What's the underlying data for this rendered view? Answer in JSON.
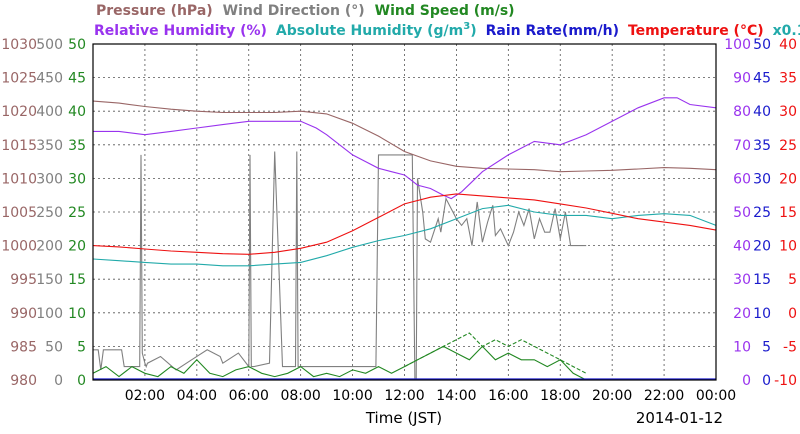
{
  "chart_data": {
    "type": "line",
    "date_label": "2014-01-12",
    "xlabel": "Time (JST)",
    "x_range_hours": [
      0,
      24
    ],
    "x_tick_hours": [
      2,
      4,
      6,
      8,
      10,
      12,
      14,
      16,
      18,
      20,
      22,
      24
    ],
    "x_tick_labels": [
      "02:00",
      "04:00",
      "06:00",
      "08:00",
      "10:00",
      "12:00",
      "14:00",
      "16:00",
      "18:00",
      "20:00",
      "22:00",
      "00:00"
    ],
    "grid": true,
    "legend": {
      "row1": [
        {
          "text": "Pressure (hPa)",
          "color": "#996666"
        },
        {
          "text": "Wind Direction (°)",
          "color": "#808080"
        },
        {
          "text": "Wind Speed (m/s)",
          "color": "#228822"
        }
      ],
      "row2": [
        {
          "text": "Relative Humidity (%)",
          "color": "#9933ee"
        },
        {
          "text": "Absolute Humidity (g/m",
          "sup": "3",
          "close": ")",
          "color": "#22aaaa"
        },
        {
          "text": "Rain Rate(mm/h)",
          "color": "#1a1acc"
        },
        {
          "text": "Temperature (°C)",
          "color": "#ee1111"
        },
        {
          "text": "x0.1",
          "color": "#22aaaa"
        }
      ]
    },
    "axes": {
      "pressure": {
        "labels": [
          "1030",
          "1025",
          "1020",
          "1015",
          "1010",
          "1005",
          "1000",
          "995",
          "990",
          "985",
          "980"
        ],
        "range": [
          980,
          1030
        ],
        "color": "#996666"
      },
      "wind_direction": {
        "labels": [
          "500",
          "450",
          "400",
          "350",
          "300",
          "250",
          "200",
          "150",
          "100",
          "50",
          "0"
        ],
        "range": [
          0,
          500
        ],
        "color": "#808080"
      },
      "wind_speed": {
        "labels": [
          "50",
          "45",
          "40",
          "35",
          "30",
          "25",
          "20",
          "15",
          "10",
          "5",
          "0"
        ],
        "range": [
          0,
          50
        ],
        "color": "#228822"
      },
      "humidity": {
        "labels": [
          "100",
          "90",
          "80",
          "70",
          "60",
          "50",
          "40",
          "30",
          "20",
          "10",
          "0"
        ],
        "range": [
          0,
          100
        ],
        "color": "#9933ee"
      },
      "rain_rate": {
        "labels": [
          "50",
          "45",
          "40",
          "35",
          "30",
          "25",
          "20",
          "15",
          "10",
          "5",
          "0"
        ],
        "range": [
          0,
          50
        ],
        "color": "#1a1acc"
      },
      "temperature": {
        "labels": [
          "40",
          "35",
          "30",
          "25",
          "20",
          "15",
          "10",
          "5",
          "0",
          "-5",
          "-10"
        ],
        "range": [
          -10,
          40
        ],
        "color": "#ee1111"
      }
    },
    "series": [
      {
        "name": "Pressure (hPa)",
        "axis": "pressure",
        "color": "#996666",
        "x": [
          0,
          1,
          2,
          3,
          4,
          5,
          6,
          7,
          8,
          9,
          10,
          11,
          12,
          13,
          14,
          15,
          16,
          17,
          18,
          19,
          20,
          21,
          22,
          23,
          24
        ],
        "y": [
          1021.5,
          1021.2,
          1020.7,
          1020.3,
          1020.0,
          1019.8,
          1019.8,
          1019.8,
          1020.0,
          1019.6,
          1018.2,
          1016.3,
          1014.0,
          1012.6,
          1011.8,
          1011.5,
          1011.4,
          1011.3,
          1011.0,
          1011.1,
          1011.2,
          1011.4,
          1011.6,
          1011.5,
          1011.3
        ]
      },
      {
        "name": "Relative Humidity (%)",
        "axis": "humidity",
        "color": "#9933ee",
        "x": [
          0,
          1,
          2,
          3,
          4,
          5,
          6,
          7,
          8,
          8.6,
          9,
          9.5,
          10,
          10.5,
          11,
          11.5,
          12,
          12.5,
          13,
          13.5,
          13.8,
          14.2,
          14.6,
          15,
          16,
          17,
          18,
          19,
          20,
          21,
          22,
          22.5,
          23,
          24
        ],
        "y": [
          74,
          74,
          73,
          74,
          75,
          76,
          77,
          77,
          77,
          75,
          73,
          70,
          67,
          65,
          63,
          62,
          61,
          58,
          57,
          55,
          54,
          56,
          59,
          62,
          67,
          71,
          70,
          73,
          77,
          81,
          84,
          84,
          82,
          81
        ]
      },
      {
        "name": "Absolute Humidity (g/m3) x0.1",
        "axis": "humidity",
        "color": "#22aaaa",
        "x": [
          0,
          1,
          2,
          3,
          4,
          5,
          6,
          7,
          8,
          9,
          10,
          11,
          12,
          13,
          14,
          15,
          16,
          17,
          18,
          19,
          20,
          21,
          22,
          23,
          24
        ],
        "y": [
          36,
          35.5,
          35,
          34.5,
          34.5,
          34,
          34,
          34.5,
          35,
          37,
          39.5,
          41.5,
          43,
          45,
          48,
          51,
          52,
          50,
          49,
          49,
          48,
          49,
          49.5,
          49,
          46
        ]
      },
      {
        "name": "Temperature (°C)",
        "axis": "temperature",
        "color": "#ee1111",
        "x": [
          0,
          1,
          2,
          3,
          4,
          5,
          6,
          7,
          8,
          9,
          10,
          11,
          12,
          13,
          14,
          15,
          16,
          17,
          18,
          19,
          20,
          21,
          22,
          23,
          24
        ],
        "y": [
          10,
          9.8,
          9.5,
          9.2,
          9.0,
          8.8,
          8.7,
          9.0,
          9.6,
          10.5,
          12.2,
          14.2,
          16.2,
          17.2,
          17.7,
          17.4,
          17.1,
          16.8,
          16.2,
          15.6,
          14.8,
          14.0,
          13.5,
          13.0,
          12.3
        ]
      },
      {
        "name": "Wind Direction (°)",
        "axis": "wind_direction",
        "color": "#808080",
        "x": [
          0,
          0.2,
          0.3,
          0.4,
          1.1,
          1.2,
          1.3,
          1.7,
          1.8,
          1.85,
          1.9,
          2.0,
          2.05,
          2.1,
          2.6,
          3.2,
          3.8,
          4.4,
          4.9,
          5.0,
          5.6,
          6.0,
          6.05,
          6.1,
          6.2,
          6.8,
          7.0,
          7.3,
          7.8,
          7.85,
          7.9,
          8.1,
          9.0,
          10.0,
          10.8,
          10.9,
          11.0,
          12.3,
          12.4,
          12.45,
          12.5,
          12.7,
          12.8,
          13.0,
          13.3,
          13.4,
          13.6,
          14.0,
          14.2,
          14.4,
          14.6,
          14.8,
          15.0,
          15.2,
          15.4,
          15.5,
          15.7,
          16.0,
          16.2,
          16.4,
          16.6,
          16.8,
          17.0,
          17.2,
          17.4,
          17.6,
          17.8,
          18.0,
          18.2,
          18.4,
          18.6,
          19.0
        ],
        "y": [
          45,
          45,
          15,
          45,
          45,
          20,
          20,
          20,
          20,
          335,
          40,
          25,
          20,
          25,
          35,
          15,
          30,
          45,
          35,
          25,
          40,
          20,
          335,
          20,
          20,
          25,
          340,
          20,
          20,
          340,
          20,
          20,
          20,
          20,
          20,
          20,
          335,
          335,
          0,
          0,
          300,
          250,
          210,
          205,
          240,
          220,
          270,
          240,
          230,
          240,
          200,
          265,
          205,
          235,
          260,
          215,
          225,
          200,
          220,
          250,
          230,
          255,
          210,
          240,
          220,
          220,
          255,
          210,
          250,
          200,
          200,
          200
        ]
      },
      {
        "name": "Wind Speed (m/s)",
        "axis": "wind_speed",
        "color": "#228822",
        "x": [
          0,
          0.5,
          1,
          1.5,
          2,
          2.5,
          3,
          3.5,
          4,
          4.5,
          5,
          5.5,
          6,
          6.5,
          7,
          7.5,
          8,
          8.5,
          9,
          9.5,
          10,
          10.5,
          11,
          11.5,
          12,
          12.5,
          13,
          13.5,
          14,
          14.5,
          15,
          15.5,
          16,
          16.5,
          17,
          17.5,
          18,
          18.5,
          19
        ],
        "y": [
          1,
          2,
          0.5,
          2,
          1,
          0.5,
          2,
          1,
          3,
          1,
          0.5,
          1.5,
          2,
          1,
          0.5,
          1,
          2,
          0.5,
          1,
          0.5,
          1.5,
          1,
          2,
          1,
          2,
          3,
          4,
          5,
          4,
          3,
          5,
          3,
          4,
          3,
          3,
          2,
          3,
          1,
          0
        ]
      },
      {
        "name": "Wind Speed dashed",
        "axis": "wind_speed",
        "color": "#228822",
        "dashed": true,
        "x": [
          12,
          12.5,
          13,
          13.5,
          14,
          14.5,
          15,
          15.5,
          16,
          16.5,
          17,
          17.5,
          18,
          18.5,
          19
        ],
        "y": [
          2,
          3,
          4,
          5,
          6,
          7,
          5,
          6,
          5,
          6,
          5,
          4,
          3,
          2,
          1
        ]
      }
    ]
  }
}
